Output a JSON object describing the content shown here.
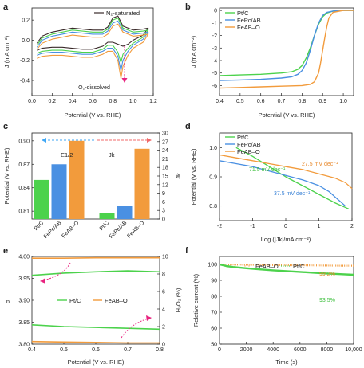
{
  "panels": {
    "a": {
      "letter": "a",
      "xlabel": "Potential (V vs. RHE)",
      "ylabel": "J (mA cm⁻²)",
      "legend": "N₂-saturated",
      "annotation": "O₂-dissolved",
      "xticks": [
        "0.0",
        "0.2",
        "0.4",
        "0.6",
        "0.8",
        "1.0",
        "1.2"
      ],
      "yticks": [
        "0.2",
        "0.0",
        "-0.2",
        "-0.4"
      ],
      "colors": {
        "dark": "#3a2a2a",
        "green": "#4cd24c",
        "blue": "#4a90e2",
        "orange": "#f29b3c",
        "arrow": "#e8237f"
      }
    },
    "b": {
      "letter": "b",
      "xlabel": "Potential (V vs. RHE)",
      "ylabel": "J (mA cm⁻²)",
      "xticks": [
        "0.4",
        "0.5",
        "0.6",
        "0.7",
        "0.8",
        "0.9",
        "1.0"
      ],
      "yticks": [
        "0",
        "-1",
        "-2",
        "-3",
        "-4",
        "-5",
        "-6"
      ],
      "legend": [
        "Pt/C",
        "FePc/AB",
        "FeAB–O"
      ]
    },
    "c": {
      "letter": "c",
      "ylabel_left": "Potential (V vs. RHE)",
      "ylabel_right": "Jk",
      "yticks_left": [
        "0.90",
        "0.87",
        "0.84",
        "0.81"
      ],
      "yticks_right": [
        "0",
        "3",
        "6",
        "9",
        "12",
        "15",
        "18",
        "21",
        "24",
        "27",
        "30"
      ],
      "label_e": "E1/2",
      "label_jk": "Jk",
      "categories": [
        "Pt/C",
        "FePc/AB",
        "FeAB–O"
      ]
    },
    "d": {
      "letter": "d",
      "xlabel": "Log (|Jk|/mA cm⁻²)",
      "ylabel": "Potential (V vs. RHE)",
      "xticks": [
        "-2",
        "-1",
        "0",
        "1",
        "2"
      ],
      "yticks": [
        "1.0",
        "0.9",
        "0.8"
      ],
      "legend": [
        "Pt/C",
        "FePc/AB",
        "FeAB–O"
      ],
      "slopes": [
        "71.5 mV dec⁻¹",
        "27.5 mV dec⁻¹",
        "37.5 mV dec⁻¹"
      ]
    },
    "e": {
      "letter": "e",
      "xlabel": "Potential (V vs. RHE)",
      "ylabel_left": "n",
      "ylabel_right": "H₂O₂ (%)",
      "xticks": [
        "0.4",
        "0.5",
        "0.6",
        "0.7",
        "0.8"
      ],
      "yticks_left": [
        "4.00",
        "3.95",
        "3.90",
        "3.85",
        "3.80"
      ],
      "yticks_right": [
        "10",
        "8",
        "6",
        "4",
        "2",
        "0"
      ],
      "legend": [
        "Pt/C",
        "FeAB–O"
      ]
    },
    "f": {
      "letter": "f",
      "xlabel": "Time (s)",
      "ylabel": "Relative current (%)",
      "xticks": [
        "0",
        "2000",
        "4000",
        "6000",
        "8000",
        "10,000"
      ],
      "yticks": [
        "100",
        "90",
        "80",
        "70",
        "60",
        "50"
      ],
      "legend": [
        "FeAB–O",
        "Pt/C"
      ],
      "end_labels": [
        "99.2%",
        "93.5%"
      ]
    }
  },
  "chart_data": [
    {
      "panel": "a",
      "type": "line",
      "xlabel": "Potential (V vs. RHE)",
      "ylabel": "J (mA cm⁻²)",
      "xlim": [
        0,
        1.2
      ],
      "ylim": [
        -0.55,
        0.32
      ],
      "series": [
        {
          "name": "N₂-saturated",
          "color": "#3a2a2a",
          "x": [
            0.05,
            0.1,
            0.2,
            0.3,
            0.4,
            0.5,
            0.6,
            0.7,
            0.75,
            0.8,
            0.85,
            0.9,
            1.0,
            1.1,
            1.15,
            1.1,
            1.0,
            0.95,
            0.9,
            0.85,
            0.8,
            0.75,
            0.7,
            0.6,
            0.5,
            0.4,
            0.3,
            0.2,
            0.1,
            0.05
          ],
          "y": [
            -0.03,
            0.04,
            0.08,
            0.1,
            0.12,
            0.11,
            0.1,
            0.1,
            0.13,
            0.22,
            0.24,
            0.14,
            0.1,
            0.11,
            0.12,
            0.05,
            0.0,
            -0.04,
            -0.06,
            -0.04,
            -0.02,
            -0.02,
            -0.06,
            -0.09,
            -0.09,
            -0.08,
            -0.07,
            -0.07,
            -0.08,
            -0.1
          ]
        },
        {
          "name": "",
          "color": "#4cd24c",
          "x": [
            0.05,
            0.1,
            0.2,
            0.3,
            0.4,
            0.5,
            0.6,
            0.7,
            0.75,
            0.8,
            0.85,
            0.9,
            1.0,
            1.1,
            1.15,
            1.1,
            1.0,
            0.95,
            0.9,
            0.88,
            0.85,
            0.8,
            0.75,
            0.7,
            0.6,
            0.5,
            0.4,
            0.3,
            0.2,
            0.1,
            0.05
          ],
          "y": [
            -0.05,
            0.02,
            0.06,
            0.08,
            0.1,
            0.09,
            0.08,
            0.08,
            0.11,
            0.2,
            0.22,
            0.12,
            0.08,
            0.09,
            0.1,
            0.03,
            -0.03,
            -0.08,
            -0.14,
            -0.22,
            -0.12,
            -0.05,
            -0.05,
            -0.09,
            -0.12,
            -0.12,
            -0.11,
            -0.1,
            -0.1,
            -0.11,
            -0.13
          ]
        },
        {
          "name": "",
          "color": "#4a90e2",
          "x": [
            0.05,
            0.1,
            0.2,
            0.3,
            0.4,
            0.5,
            0.6,
            0.7,
            0.75,
            0.8,
            0.85,
            0.9,
            1.0,
            1.1,
            1.15,
            1.1,
            1.0,
            0.95,
            0.9,
            0.88,
            0.85,
            0.8,
            0.75,
            0.7,
            0.6,
            0.5,
            0.4,
            0.3,
            0.2,
            0.1,
            0.05
          ],
          "y": [
            -0.07,
            0.0,
            0.04,
            0.06,
            0.08,
            0.07,
            0.06,
            0.06,
            0.09,
            0.17,
            0.19,
            0.1,
            0.06,
            0.07,
            0.08,
            0.01,
            -0.05,
            -0.11,
            -0.2,
            -0.3,
            -0.16,
            -0.08,
            -0.08,
            -0.11,
            -0.14,
            -0.14,
            -0.13,
            -0.12,
            -0.12,
            -0.13,
            -0.15
          ]
        },
        {
          "name": "",
          "color": "#f29b3c",
          "x": [
            0.05,
            0.1,
            0.2,
            0.3,
            0.4,
            0.5,
            0.6,
            0.7,
            0.75,
            0.8,
            0.85,
            0.9,
            1.0,
            1.1,
            1.15,
            1.1,
            1.0,
            0.95,
            0.9,
            0.88,
            0.85,
            0.8,
            0.75,
            0.7,
            0.6,
            0.5,
            0.4,
            0.3,
            0.2,
            0.1,
            0.05
          ],
          "y": [
            -0.09,
            -0.03,
            0.01,
            0.03,
            0.05,
            0.04,
            0.03,
            0.03,
            0.06,
            0.14,
            0.16,
            0.08,
            0.04,
            0.05,
            0.06,
            -0.02,
            -0.08,
            -0.15,
            -0.26,
            -0.38,
            -0.2,
            -0.11,
            -0.11,
            -0.14,
            -0.17,
            -0.17,
            -0.16,
            -0.15,
            -0.15,
            -0.16,
            -0.18
          ]
        }
      ]
    },
    {
      "panel": "b",
      "type": "line",
      "xlabel": "Potential (V vs. RHE)",
      "ylabel": "J (mA cm⁻²)",
      "xlim": [
        0.4,
        1.05
      ],
      "ylim": [
        -6.8,
        0.2
      ],
      "series": [
        {
          "name": "Pt/C",
          "color": "#4cd24c",
          "x": [
            0.4,
            0.5,
            0.6,
            0.7,
            0.75,
            0.78,
            0.8,
            0.82,
            0.84,
            0.86,
            0.88,
            0.9,
            0.92,
            0.95,
            1.0,
            1.05
          ],
          "y": [
            -5.2,
            -5.15,
            -5.1,
            -5.0,
            -4.9,
            -4.7,
            -4.4,
            -3.8,
            -3.0,
            -2.0,
            -1.1,
            -0.5,
            -0.2,
            -0.05,
            0.0,
            0.0
          ]
        },
        {
          "name": "FePc/AB",
          "color": "#4a90e2",
          "x": [
            0.4,
            0.5,
            0.6,
            0.7,
            0.75,
            0.78,
            0.8,
            0.82,
            0.84,
            0.86,
            0.88,
            0.9,
            0.92,
            0.95,
            1.0,
            1.05
          ],
          "y": [
            -5.6,
            -5.55,
            -5.5,
            -5.4,
            -5.3,
            -5.1,
            -4.8,
            -4.2,
            -3.2,
            -2.0,
            -1.0,
            -0.4,
            -0.15,
            -0.05,
            0.0,
            0.0
          ]
        },
        {
          "name": "FeAB–O",
          "color": "#f29b3c",
          "x": [
            0.4,
            0.5,
            0.6,
            0.7,
            0.8,
            0.84,
            0.86,
            0.88,
            0.89,
            0.9,
            0.91,
            0.92,
            0.93,
            0.95,
            1.0,
            1.05
          ],
          "y": [
            -6.2,
            -6.15,
            -6.1,
            -6.05,
            -6.0,
            -5.9,
            -5.7,
            -5.0,
            -4.2,
            -3.2,
            -2.2,
            -1.3,
            -0.6,
            -0.15,
            0.0,
            0.0
          ]
        }
      ]
    },
    {
      "panel": "c",
      "type": "bar",
      "categories": [
        "Pt/C",
        "FePc/AB",
        "FeAB–O"
      ],
      "colors": [
        "#4cd24c",
        "#4a90e2",
        "#f29b3c"
      ],
      "series": [
        {
          "name": "E1/2",
          "axis": "left",
          "values": [
            0.85,
            0.87,
            0.9
          ]
        },
        {
          "name": "Jk",
          "axis": "right",
          "values": [
            2.0,
            4.5,
            24.5
          ]
        }
      ],
      "ylim_left": [
        0.8,
        0.91
      ],
      "ylim_right": [
        0,
        30
      ]
    },
    {
      "panel": "d",
      "type": "line",
      "xlabel": "Log (|Jk|/mA cm⁻²)",
      "ylabel": "Potential (V vs. RHE)",
      "xlim": [
        -2,
        2
      ],
      "ylim": [
        0.75,
        1.05
      ],
      "series": [
        {
          "name": "Pt/C",
          "color": "#4cd24c",
          "x": [
            -1.5,
            -1.0,
            -0.5,
            0.0,
            0.5,
            1.0,
            1.5,
            1.9
          ],
          "y": [
            1.0,
            0.97,
            0.935,
            0.9,
            0.87,
            0.84,
            0.81,
            0.79
          ]
        },
        {
          "name": "FePc/AB",
          "color": "#4a90e2",
          "x": [
            -2.0,
            -1.5,
            -1.0,
            -0.5,
            0.0,
            0.5,
            1.0,
            1.3,
            1.5,
            1.8
          ],
          "y": [
            0.955,
            0.945,
            0.935,
            0.92,
            0.905,
            0.89,
            0.87,
            0.85,
            0.83,
            0.8
          ]
        },
        {
          "name": "FeAB–O",
          "color": "#f29b3c",
          "x": [
            -2.0,
            -1.5,
            -1.0,
            -0.5,
            0.0,
            0.5,
            1.0,
            1.5,
            1.8,
            2.0
          ],
          "y": [
            0.975,
            0.965,
            0.955,
            0.945,
            0.935,
            0.925,
            0.91,
            0.895,
            0.88,
            0.86
          ]
        }
      ]
    },
    {
      "panel": "e",
      "type": "line",
      "xlabel": "Potential (V vs. RHE)",
      "ylabel_left": "n",
      "ylabel_right": "H₂O₂ (%)",
      "xlim": [
        0.4,
        0.8
      ],
      "ylim_left": [
        3.8,
        4.0
      ],
      "ylim_right": [
        0,
        10
      ],
      "series": [
        {
          "name": "Pt/C",
          "axis": "left",
          "color": "#4cd24c",
          "x": [
            0.4,
            0.5,
            0.6,
            0.7,
            0.8
          ],
          "y": [
            3.957,
            3.962,
            3.965,
            3.967,
            3.965
          ]
        },
        {
          "name": "FeAB–O",
          "axis": "left",
          "color": "#f29b3c",
          "x": [
            0.4,
            0.5,
            0.6,
            0.7,
            0.8
          ],
          "y": [
            3.996,
            3.996,
            3.997,
            3.997,
            3.997
          ]
        },
        {
          "name": "",
          "axis": "right",
          "color": "#4cd24c",
          "x": [
            0.4,
            0.5,
            0.6,
            0.7,
            0.8
          ],
          "y": [
            2.2,
            2.0,
            1.9,
            1.8,
            1.7
          ]
        },
        {
          "name": "",
          "axis": "right",
          "color": "#f29b3c",
          "x": [
            0.4,
            0.5,
            0.6,
            0.7,
            0.8
          ],
          "y": [
            0.3,
            0.25,
            0.2,
            0.15,
            0.15
          ]
        }
      ]
    },
    {
      "panel": "f",
      "type": "line",
      "xlabel": "Time (s)",
      "ylabel": "Relative current (%)",
      "xlim": [
        0,
        10000
      ],
      "ylim": [
        50,
        105
      ],
      "series": [
        {
          "name": "FeAB–O",
          "color": "#f29b3c",
          "x": [
            0,
            1000,
            2000,
            3000,
            4000,
            5000,
            6000,
            7000,
            8000,
            9000,
            10000
          ],
          "y": [
            100,
            99.9,
            99.8,
            99.7,
            99.6,
            99.5,
            99.5,
            99.4,
            99.3,
            99.2,
            99.2
          ]
        },
        {
          "name": "Pt/C",
          "color": "#4cd24c",
          "x": [
            0,
            500,
            1000,
            2000,
            3000,
            4000,
            5000,
            6000,
            7000,
            8000,
            9000,
            10000
          ],
          "y": [
            100,
            99.0,
            98.4,
            97.6,
            96.9,
            96.3,
            95.8,
            95.3,
            94.8,
            94.3,
            93.9,
            93.5
          ]
        }
      ]
    }
  ]
}
